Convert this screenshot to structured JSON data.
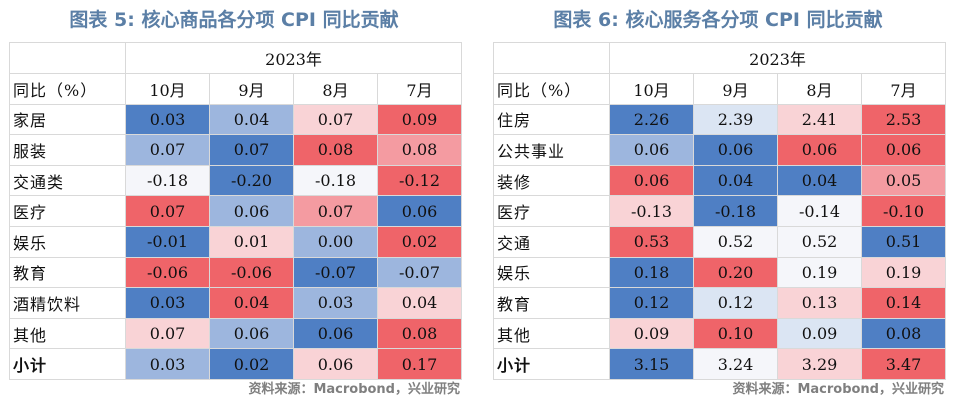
{
  "left": {
    "title": "图表 5:  核心商品各分项 CPI 同比贡献",
    "year": "2023年",
    "row_header": "同比（%）",
    "months": [
      "10月",
      "9月",
      "8月",
      "7月"
    ],
    "rows": [
      {
        "label": "家居",
        "values": [
          "0.03",
          "0.04",
          "0.07",
          "0.09"
        ],
        "colors": [
          "#4f7fc4",
          "#9db6de",
          "#f9d3d6",
          "#ef6469"
        ]
      },
      {
        "label": "服装",
        "values": [
          "0.07",
          "0.07",
          "0.08",
          "0.08"
        ],
        "colors": [
          "#9db6de",
          "#4f7fc4",
          "#ef6469",
          "#f49ba1"
        ]
      },
      {
        "label": "交通类",
        "values": [
          "-0.18",
          "-0.20",
          "-0.18",
          "-0.12"
        ],
        "colors": [
          "#f5f6fa",
          "#4f7fc4",
          "#f5f6fa",
          "#ef6469"
        ]
      },
      {
        "label": "医疗",
        "values": [
          "0.07",
          "0.06",
          "0.07",
          "0.06"
        ],
        "colors": [
          "#ef6469",
          "#9db6de",
          "#f49ba1",
          "#4f7fc4"
        ]
      },
      {
        "label": "娱乐",
        "values": [
          "-0.01",
          "0.01",
          "0.00",
          "0.02"
        ],
        "colors": [
          "#4f7fc4",
          "#f9d3d6",
          "#9db6de",
          "#ef6469"
        ]
      },
      {
        "label": "教育",
        "values": [
          "-0.06",
          "-0.06",
          "-0.07",
          "-0.07"
        ],
        "colors": [
          "#ef6469",
          "#ef6469",
          "#4f7fc4",
          "#9db6de"
        ]
      },
      {
        "label": "酒精饮料",
        "values": [
          "0.03",
          "0.04",
          "0.03",
          "0.04"
        ],
        "colors": [
          "#4f7fc4",
          "#ef6469",
          "#9db6de",
          "#f9d3d6"
        ]
      },
      {
        "label": "其他",
        "values": [
          "0.07",
          "0.06",
          "0.06",
          "0.08"
        ],
        "colors": [
          "#f9d3d6",
          "#9db6de",
          "#4f7fc4",
          "#ef6469"
        ]
      },
      {
        "label": "小计",
        "values": [
          "0.03",
          "0.02",
          "0.06",
          "0.17"
        ],
        "colors": [
          "#9db6de",
          "#4f7fc4",
          "#f9d3d6",
          "#ef6469"
        ]
      }
    ],
    "source": "资料来源：Macrobond，兴业研究"
  },
  "right": {
    "title": "图表 6:  核心服务各分项 CPI 同比贡献",
    "year": "2023年",
    "row_header": "同比（%）",
    "months": [
      "10月",
      "9月",
      "8月",
      "7月"
    ],
    "rows": [
      {
        "label": "住房",
        "values": [
          "2.26",
          "2.39",
          "2.41",
          "2.53"
        ],
        "colors": [
          "#4f7fc4",
          "#dbe5f3",
          "#f9d3d6",
          "#ef6469"
        ]
      },
      {
        "label": "公共事业",
        "values": [
          "0.06",
          "0.06",
          "0.06",
          "0.06"
        ],
        "colors": [
          "#9db6de",
          "#4f7fc4",
          "#ef6469",
          "#ef6469"
        ]
      },
      {
        "label": "装修",
        "values": [
          "0.06",
          "0.04",
          "0.04",
          "0.05"
        ],
        "colors": [
          "#ef6469",
          "#4f7fc4",
          "#4f7fc4",
          "#f49ba1"
        ]
      },
      {
        "label": "医疗",
        "values": [
          "-0.13",
          "-0.18",
          "-0.14",
          "-0.10"
        ],
        "colors": [
          "#f9d3d6",
          "#4f7fc4",
          "#f5f6fa",
          "#ef6469"
        ]
      },
      {
        "label": "交通",
        "values": [
          "0.53",
          "0.52",
          "0.52",
          "0.51"
        ],
        "colors": [
          "#ef6469",
          "#f5f6fa",
          "#f5f6fa",
          "#4f7fc4"
        ]
      },
      {
        "label": "娱乐",
        "values": [
          "0.18",
          "0.20",
          "0.19",
          "0.19"
        ],
        "colors": [
          "#4f7fc4",
          "#ef6469",
          "#f5f6fa",
          "#f9d3d6"
        ]
      },
      {
        "label": "教育",
        "values": [
          "0.12",
          "0.12",
          "0.13",
          "0.14"
        ],
        "colors": [
          "#4f7fc4",
          "#dbe5f3",
          "#f9d3d6",
          "#ef6469"
        ]
      },
      {
        "label": "其他",
        "values": [
          "0.09",
          "0.10",
          "0.09",
          "0.08"
        ],
        "colors": [
          "#f9d3d6",
          "#ef6469",
          "#dbe5f3",
          "#4f7fc4"
        ]
      },
      {
        "label": "小计",
        "values": [
          "3.15",
          "3.24",
          "3.29",
          "3.47"
        ],
        "colors": [
          "#4f7fc4",
          "#f5f6fa",
          "#f9d3d6",
          "#ef6469"
        ]
      }
    ],
    "source": "资料来源：Macrobond，兴业研究"
  }
}
